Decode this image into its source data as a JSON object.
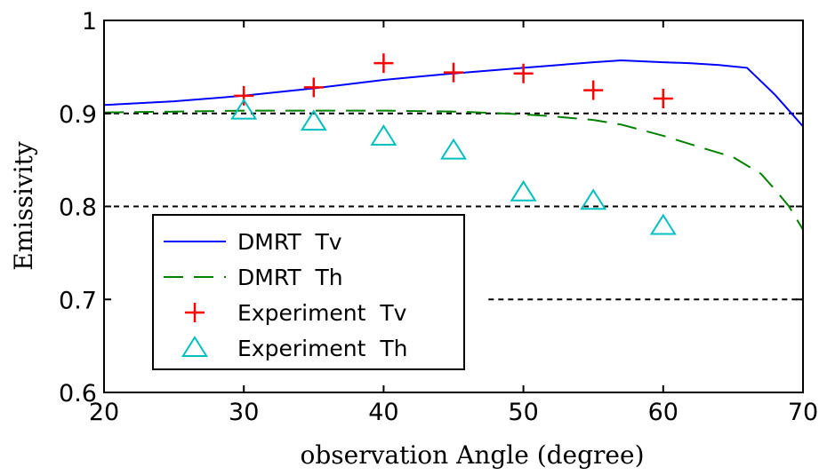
{
  "chart_data": {
    "type": "line",
    "title": "",
    "xlabel": "observation Angle (degree)",
    "ylabel": "Emissivity",
    "xlim": [
      20,
      70
    ],
    "ylim": [
      0.6,
      1.0
    ],
    "xticks": [
      20,
      30,
      40,
      50,
      60,
      70
    ],
    "yticks": [
      0.6,
      0.7,
      0.8,
      0.9,
      1.0
    ],
    "xtick_labels": [
      "20",
      "30",
      "40",
      "50",
      "60",
      "70"
    ],
    "ytick_labels": [
      "0.6",
      "0.7",
      "0.8",
      "0.9",
      "1"
    ],
    "grid": false,
    "legend_position": "lower-left",
    "reference_lines": [
      {
        "y": 0.9,
        "x_from": 20,
        "x_to": 70,
        "style": "dotted",
        "color": "#000000"
      },
      {
        "y": 0.8,
        "x_from": 20,
        "x_to": 70,
        "style": "dotted",
        "color": "#000000"
      },
      {
        "y": 0.7,
        "x_from": 47.5,
        "x_to": 70,
        "style": "dotted",
        "color": "#000000"
      }
    ],
    "series": [
      {
        "name": "DMRT  Tv",
        "kind": "line",
        "style": "solid",
        "color": "#0000ff",
        "x": [
          20,
          25,
          30,
          35,
          40,
          45,
          50,
          55,
          57,
          60,
          62,
          64,
          66,
          68,
          70
        ],
        "y": [
          0.909,
          0.913,
          0.919,
          0.927,
          0.936,
          0.943,
          0.949,
          0.955,
          0.957,
          0.955,
          0.954,
          0.952,
          0.949,
          0.92,
          0.886
        ]
      },
      {
        "name": "DMRT  Th",
        "kind": "line",
        "style": "dashed",
        "color": "#008000",
        "x": [
          20,
          25,
          30,
          35,
          40,
          45,
          47,
          50,
          52,
          55,
          57,
          60,
          63,
          65,
          67,
          68,
          69,
          70
        ],
        "y": [
          0.901,
          0.902,
          0.903,
          0.903,
          0.903,
          0.902,
          0.901,
          0.899,
          0.897,
          0.893,
          0.888,
          0.876,
          0.862,
          0.853,
          0.835,
          0.818,
          0.8,
          0.775
        ]
      },
      {
        "name": "Experiment  Tv",
        "kind": "scatter",
        "marker": "plus",
        "color": "#ff0000",
        "x": [
          30,
          35,
          40,
          45,
          50,
          55,
          60
        ],
        "y": [
          0.919,
          0.928,
          0.954,
          0.944,
          0.943,
          0.925,
          0.916
        ]
      },
      {
        "name": "Experiment  Th",
        "kind": "scatter",
        "marker": "triangle",
        "color": "#00bfbf",
        "x": [
          30,
          35,
          40,
          45,
          50,
          55,
          60
        ],
        "y": [
          0.903,
          0.891,
          0.875,
          0.86,
          0.815,
          0.806,
          0.779
        ]
      }
    ]
  }
}
